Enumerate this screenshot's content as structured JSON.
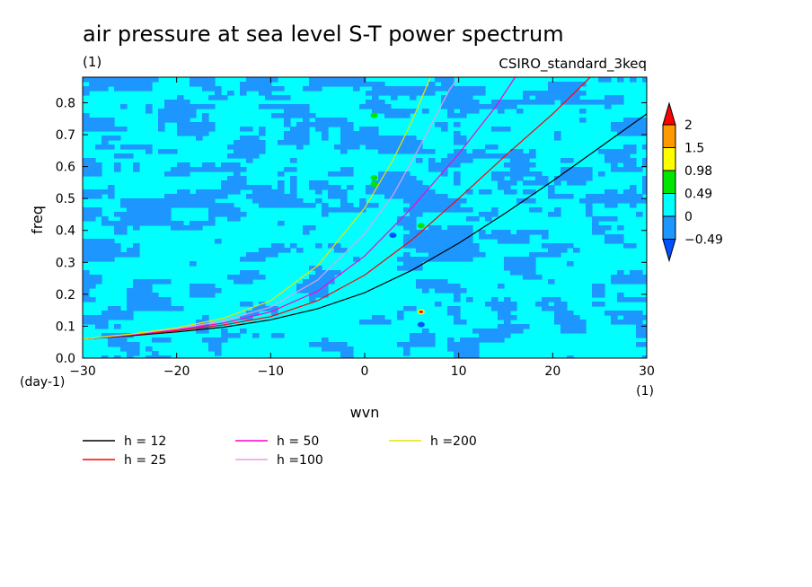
{
  "chart_data": {
    "type": "heatmap",
    "title": "air pressure at sea level S-T power spectrum",
    "units_label": "(1)",
    "model_label": "CSIRO_standard_3keq",
    "xlabel": "wvn",
    "ylabel": "freq",
    "x_unit_label": "(1)",
    "y_unit_label": "(day-1)",
    "xlim": [
      -30,
      30
    ],
    "ylim": [
      0,
      0.88
    ],
    "x_ticks": [
      -30,
      -20,
      -10,
      0,
      10,
      20,
      30
    ],
    "y_ticks": [
      0.0,
      0.1,
      0.2,
      0.3,
      0.4,
      0.5,
      0.6,
      0.7,
      0.8
    ],
    "x_tick_labels": [
      "-30",
      "-20",
      "-10",
      "0",
      "10",
      "20",
      "30"
    ],
    "y_tick_labels": [
      "0.0",
      "0.1",
      "0.2",
      "0.3",
      "0.4",
      "0.5",
      "0.6",
      "0.7",
      "0.8"
    ],
    "colorbar": {
      "levels": [
        "2",
        "1.5",
        "0.98",
        "0.49",
        "0",
        "-0.49"
      ],
      "colors": [
        "#ff0000",
        "#ff9900",
        "#ffff00",
        "#00e600",
        "#00ffff",
        "#1e96ff",
        "#0050ff"
      ]
    },
    "field": {
      "background_color": "#00ffff",
      "secondary_color": "#1e96ff"
    },
    "hot_spots": [
      {
        "x": 1,
        "y": 0.76,
        "color": "#00e600"
      },
      {
        "x": 1,
        "y": 0.565,
        "color": "#00e600"
      },
      {
        "x": 1,
        "y": 0.545,
        "color": "#00e600"
      },
      {
        "x": 6,
        "y": 0.145,
        "color": "#ffff00"
      },
      {
        "x": 6,
        "y": 0.145,
        "color": "#ff0000"
      },
      {
        "x": 3,
        "y": 0.385,
        "color": "#0050ff"
      },
      {
        "x": 6,
        "y": 0.105,
        "color": "#0050ff"
      },
      {
        "x": 6,
        "y": 0.415,
        "color": "#00e600"
      }
    ],
    "series": [
      {
        "name": "h = 12",
        "color": "#000000",
        "points": [
          [
            -30,
            0.06
          ],
          [
            -25,
            0.07
          ],
          [
            -20,
            0.082
          ],
          [
            -15,
            0.097
          ],
          [
            -10,
            0.12
          ],
          [
            -5,
            0.155
          ],
          [
            0,
            0.205
          ],
          [
            5,
            0.275
          ],
          [
            10,
            0.36
          ],
          [
            15,
            0.455
          ],
          [
            20,
            0.555
          ],
          [
            25,
            0.66
          ],
          [
            30,
            0.765
          ]
        ]
      },
      {
        "name": "h = 25",
        "color": "#ff0000",
        "points": [
          [
            -30,
            0.06
          ],
          [
            -25,
            0.072
          ],
          [
            -20,
            0.086
          ],
          [
            -15,
            0.104
          ],
          [
            -10,
            0.13
          ],
          [
            -5,
            0.18
          ],
          [
            0,
            0.26
          ],
          [
            5,
            0.37
          ],
          [
            10,
            0.5
          ],
          [
            15,
            0.635
          ],
          [
            20,
            0.765
          ],
          [
            24,
            0.88
          ]
        ]
      },
      {
        "name": "h = 50",
        "color": "#ff00cc",
        "points": [
          [
            -30,
            0.06
          ],
          [
            -25,
            0.073
          ],
          [
            -20,
            0.089
          ],
          [
            -15,
            0.11
          ],
          [
            -10,
            0.145
          ],
          [
            -5,
            0.21
          ],
          [
            0,
            0.32
          ],
          [
            5,
            0.47
          ],
          [
            10,
            0.64
          ],
          [
            14,
            0.79
          ],
          [
            16,
            0.88
          ]
        ]
      },
      {
        "name": "h =100",
        "color": "#e6a0e6",
        "points": [
          [
            -30,
            0.06
          ],
          [
            -25,
            0.074
          ],
          [
            -20,
            0.092
          ],
          [
            -15,
            0.117
          ],
          [
            -10,
            0.16
          ],
          [
            -5,
            0.245
          ],
          [
            0,
            0.39
          ],
          [
            3,
            0.51
          ],
          [
            6,
            0.67
          ],
          [
            9,
            0.84
          ],
          [
            10,
            0.88
          ]
        ]
      },
      {
        "name": "h =200",
        "color": "#e6e600",
        "points": [
          [
            -30,
            0.06
          ],
          [
            -25,
            0.075
          ],
          [
            -20,
            0.095
          ],
          [
            -15,
            0.125
          ],
          [
            -10,
            0.18
          ],
          [
            -5,
            0.29
          ],
          [
            0,
            0.47
          ],
          [
            3,
            0.62
          ],
          [
            5,
            0.74
          ],
          [
            7,
            0.88
          ]
        ]
      }
    ]
  }
}
